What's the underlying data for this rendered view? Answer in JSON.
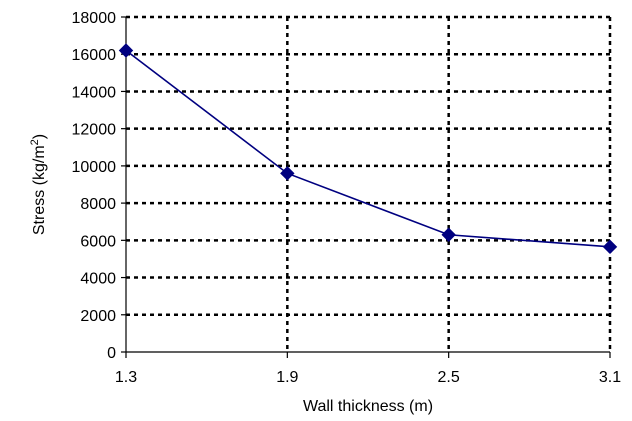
{
  "chart_data": {
    "type": "line",
    "title": "",
    "xlabel": "Wall thickness (m)",
    "ylabel": {
      "prefix": "Stress (kg/m",
      "superscript": "2",
      "suffix": ")"
    },
    "x": [
      1.3,
      1.9,
      2.5,
      3.1
    ],
    "x_tick_labels": [
      "1.3",
      "1.9",
      "2.5",
      "3.1"
    ],
    "y_ticks": [
      0,
      2000,
      4000,
      6000,
      8000,
      10000,
      12000,
      14000,
      16000,
      18000
    ],
    "xlim": [
      1.3,
      3.1
    ],
    "ylim": [
      0,
      18000
    ],
    "grid": true,
    "grid_style": "dotted",
    "series": [
      {
        "values": [
          16200,
          9600,
          6300,
          5650
        ],
        "color": "#000080",
        "marker": "diamond"
      }
    ]
  }
}
